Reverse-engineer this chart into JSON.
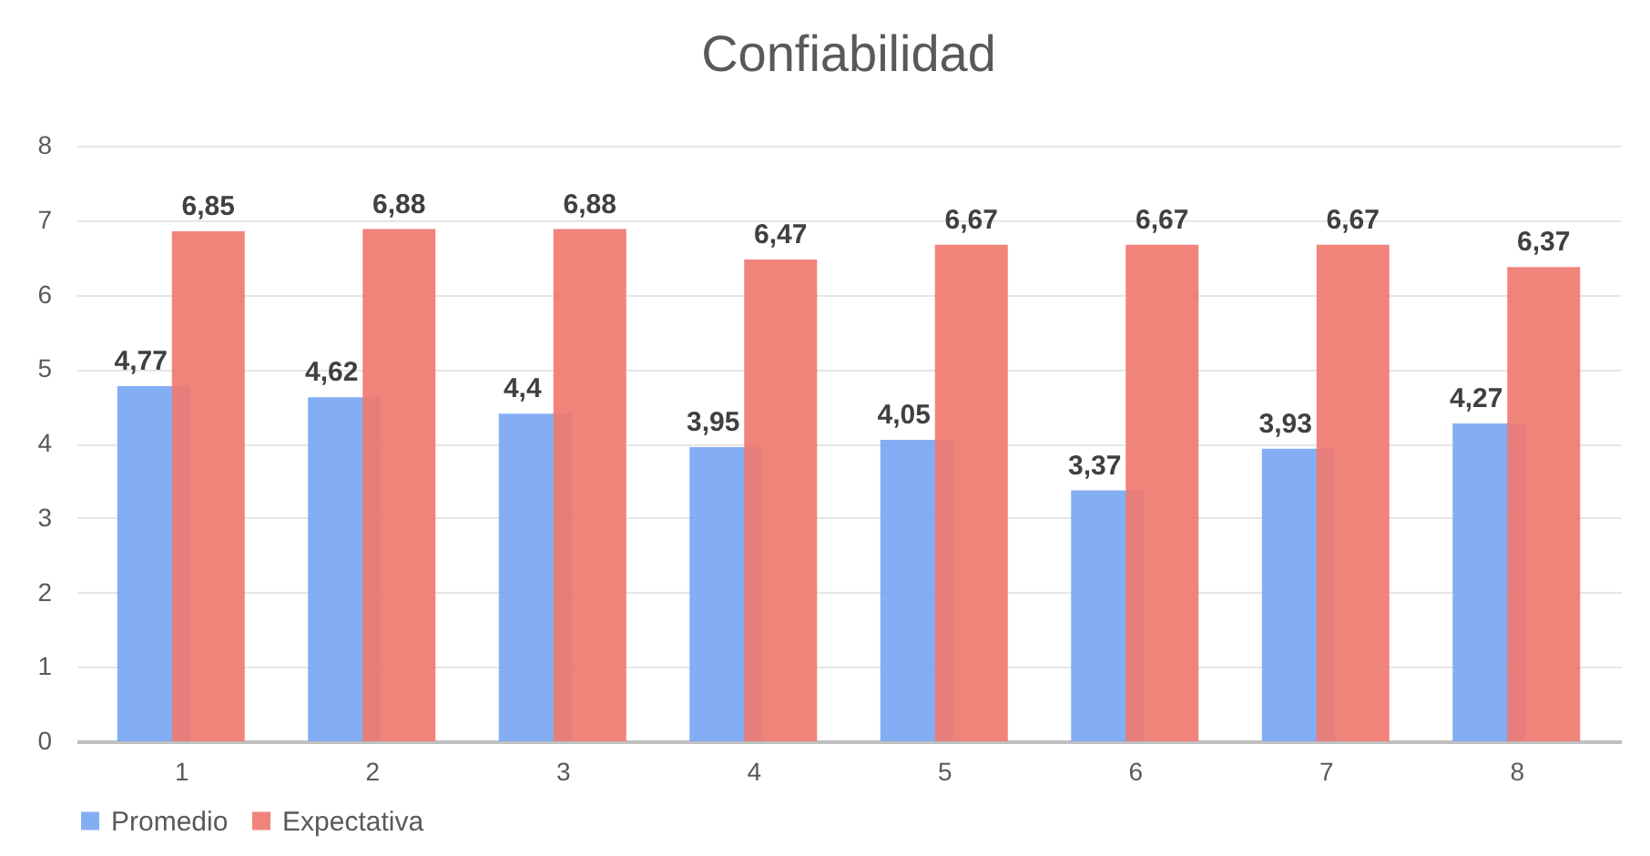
{
  "chart_data": {
    "type": "bar",
    "title": "Confiabilidad",
    "categories": [
      "1",
      "2",
      "3",
      "4",
      "5",
      "6",
      "7",
      "8"
    ],
    "series": [
      {
        "name": "Promedio",
        "color": "#7aa7f3",
        "values": [
          4.77,
          4.62,
          4.4,
          3.95,
          4.05,
          3.37,
          3.93,
          4.27
        ],
        "value_labels": [
          "4,77",
          "4,62",
          "4,4",
          "3,95",
          "4,05",
          "3,37",
          "3,93",
          "4,27"
        ]
      },
      {
        "name": "Expectativa",
        "color": "#ef7a70",
        "values": [
          6.85,
          6.88,
          6.88,
          6.47,
          6.67,
          6.67,
          6.67,
          6.37
        ],
        "value_labels": [
          "6,85",
          "6,88",
          "6,88",
          "6,47",
          "6,67",
          "6,67",
          "6,67",
          "6,37"
        ]
      }
    ],
    "ylim": [
      0,
      8
    ],
    "yticks": [
      0,
      1,
      2,
      3,
      4,
      5,
      6,
      7,
      8
    ],
    "grid": "y",
    "legend": "bottom"
  }
}
